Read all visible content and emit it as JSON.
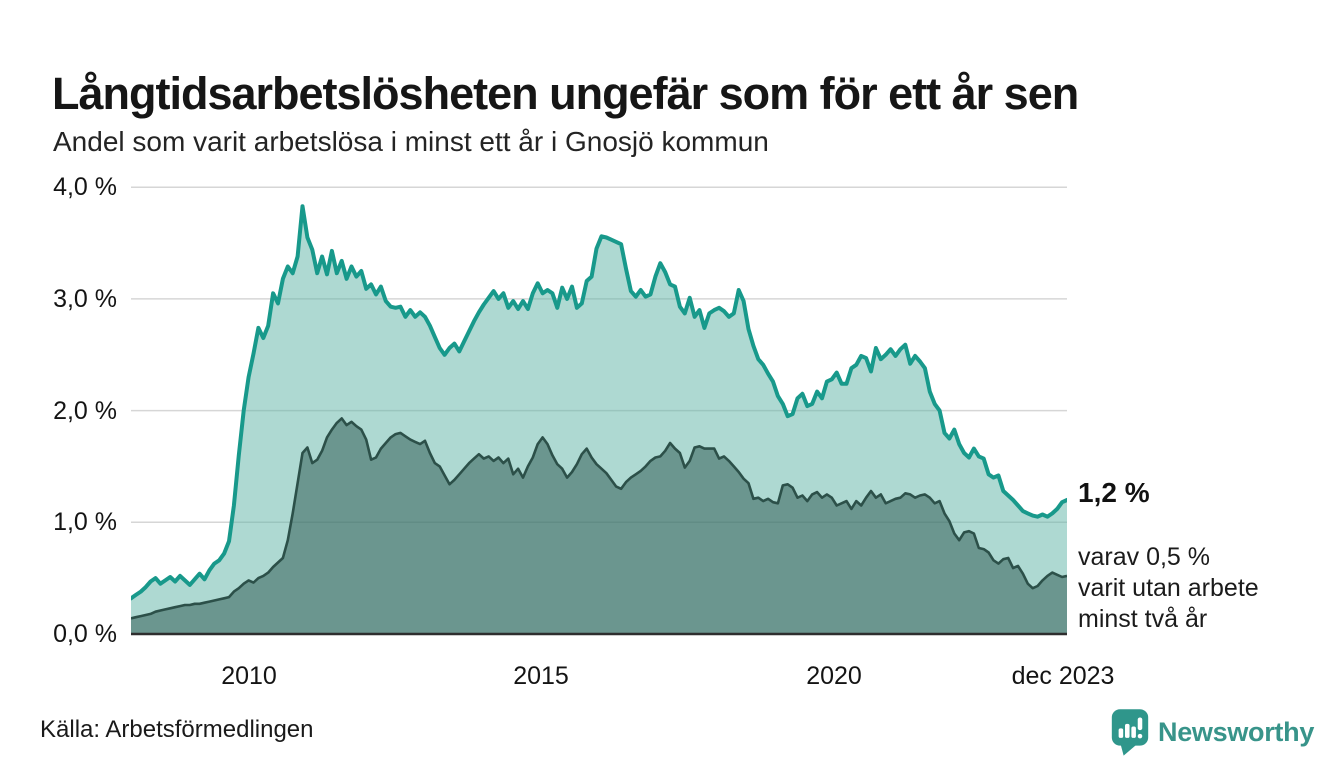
{
  "header": {
    "title": "Långtidsarbetslösheten ungefär som för ett år sen",
    "subtitle": "Andel som varit arbetslösa i minst ett år i Gnosjö kommun"
  },
  "chart_data": {
    "type": "area",
    "title": "Långtidsarbetslösheten ungefär som för ett år sen",
    "subtitle": "Andel som varit arbetslösa i minst ett år i Gnosjö kommun",
    "unit": "%",
    "x_start": "jan 2008",
    "x_end": "dec 2023",
    "x_frequency": "monthly",
    "ylim": [
      0,
      4.0
    ],
    "y_ticks": [
      0,
      1,
      2,
      3,
      4
    ],
    "y_tick_labels": [
      "4,0 %",
      "3,0 %",
      "2,0 %",
      "1,0 %",
      "0,0 %"
    ],
    "x_tick_labels": [
      "2010",
      "2015",
      "2020",
      "dec 2023"
    ],
    "grid": "horizontal",
    "legend_position": "none",
    "colors": {
      "grid": "#d6d6d6",
      "fill1": "rgba(93,179,166,0.5)",
      "fill2": "rgba(40,84,76,0.5)",
      "axis": "#2e2e2e"
    },
    "series": [
      {
        "name": "Arbetslösa minst ett år",
        "color": "#18998b",
        "end_value_label": "1,2 %",
        "values": [
          0.32,
          0.35,
          0.38,
          0.42,
          0.47,
          0.5,
          0.45,
          0.48,
          0.51,
          0.47,
          0.52,
          0.48,
          0.44,
          0.49,
          0.54,
          0.49,
          0.57,
          0.63,
          0.66,
          0.72,
          0.83,
          1.15,
          1.6,
          2.0,
          2.3,
          2.51,
          2.74,
          2.65,
          2.76,
          3.05,
          2.96,
          3.18,
          3.29,
          3.23,
          3.38,
          3.83,
          3.55,
          3.44,
          3.23,
          3.38,
          3.22,
          3.43,
          3.23,
          3.34,
          3.18,
          3.29,
          3.2,
          3.25,
          3.09,
          3.13,
          3.04,
          3.11,
          2.98,
          2.93,
          2.92,
          2.93,
          2.84,
          2.9,
          2.84,
          2.88,
          2.84,
          2.76,
          2.66,
          2.56,
          2.5,
          2.56,
          2.6,
          2.53,
          2.62,
          2.71,
          2.8,
          2.88,
          2.95,
          3.01,
          3.07,
          3.0,
          3.05,
          2.92,
          2.98,
          2.91,
          2.98,
          2.91,
          3.05,
          3.14,
          3.05,
          3.08,
          3.05,
          2.92,
          3.1,
          3.0,
          3.11,
          2.92,
          2.96,
          3.16,
          3.2,
          3.45,
          3.56,
          3.55,
          3.53,
          3.51,
          3.49,
          3.27,
          3.07,
          3.02,
          3.08,
          3.02,
          3.04,
          3.2,
          3.32,
          3.24,
          3.13,
          3.11,
          2.93,
          2.87,
          3.01,
          2.84,
          2.9,
          2.74,
          2.87,
          2.9,
          2.92,
          2.89,
          2.84,
          2.87,
          3.08,
          2.98,
          2.73,
          2.58,
          2.46,
          2.41,
          2.33,
          2.26,
          2.13,
          2.06,
          1.95,
          1.97,
          2.11,
          2.15,
          2.04,
          2.06,
          2.17,
          2.11,
          2.26,
          2.28,
          2.34,
          2.24,
          2.24,
          2.38,
          2.41,
          2.49,
          2.47,
          2.35,
          2.56,
          2.46,
          2.5,
          2.55,
          2.49,
          2.55,
          2.59,
          2.42,
          2.49,
          2.44,
          2.38,
          2.17,
          2.06,
          2.0,
          1.8,
          1.75,
          1.83,
          1.7,
          1.62,
          1.58,
          1.66,
          1.59,
          1.57,
          1.43,
          1.4,
          1.42,
          1.28,
          1.24,
          1.2,
          1.15,
          1.1,
          1.08,
          1.06,
          1.05,
          1.07,
          1.05,
          1.08,
          1.12,
          1.18,
          1.2
        ]
      },
      {
        "name": "Arbetslösa minst två år",
        "color": "#2c5049",
        "end_value_label": "0,5 %",
        "values": [
          0.14,
          0.15,
          0.16,
          0.17,
          0.18,
          0.2,
          0.21,
          0.22,
          0.23,
          0.24,
          0.25,
          0.26,
          0.26,
          0.27,
          0.27,
          0.28,
          0.29,
          0.3,
          0.31,
          0.32,
          0.33,
          0.38,
          0.41,
          0.45,
          0.48,
          0.46,
          0.5,
          0.52,
          0.55,
          0.6,
          0.64,
          0.68,
          0.84,
          1.08,
          1.35,
          1.62,
          1.67,
          1.53,
          1.56,
          1.64,
          1.76,
          1.83,
          1.89,
          1.93,
          1.87,
          1.9,
          1.86,
          1.83,
          1.74,
          1.56,
          1.58,
          1.66,
          1.71,
          1.76,
          1.79,
          1.8,
          1.77,
          1.74,
          1.72,
          1.7,
          1.73,
          1.62,
          1.53,
          1.5,
          1.42,
          1.34,
          1.38,
          1.43,
          1.48,
          1.53,
          1.57,
          1.61,
          1.57,
          1.59,
          1.55,
          1.58,
          1.53,
          1.57,
          1.43,
          1.48,
          1.4,
          1.5,
          1.58,
          1.7,
          1.76,
          1.7,
          1.6,
          1.52,
          1.48,
          1.4,
          1.45,
          1.52,
          1.61,
          1.66,
          1.58,
          1.52,
          1.48,
          1.44,
          1.38,
          1.32,
          1.3,
          1.36,
          1.4,
          1.43,
          1.46,
          1.5,
          1.55,
          1.58,
          1.59,
          1.64,
          1.71,
          1.66,
          1.62,
          1.49,
          1.55,
          1.67,
          1.68,
          1.66,
          1.66,
          1.66,
          1.57,
          1.59,
          1.55,
          1.5,
          1.45,
          1.39,
          1.35,
          1.21,
          1.22,
          1.19,
          1.21,
          1.18,
          1.17,
          1.33,
          1.34,
          1.31,
          1.22,
          1.24,
          1.19,
          1.25,
          1.27,
          1.22,
          1.25,
          1.22,
          1.15,
          1.17,
          1.19,
          1.12,
          1.19,
          1.15,
          1.22,
          1.28,
          1.22,
          1.25,
          1.17,
          1.19,
          1.21,
          1.22,
          1.26,
          1.25,
          1.22,
          1.24,
          1.25,
          1.22,
          1.17,
          1.19,
          1.08,
          1.01,
          0.9,
          0.84,
          0.91,
          0.92,
          0.9,
          0.77,
          0.76,
          0.73,
          0.66,
          0.63,
          0.67,
          0.68,
          0.59,
          0.61,
          0.54,
          0.45,
          0.41,
          0.43,
          0.48,
          0.52,
          0.55,
          0.53,
          0.51,
          0.52
        ]
      }
    ],
    "annotations": {
      "primary": "1,2 %",
      "secondary_lines": [
        "varav 0,5 %",
        "varit utan arbete",
        "minst två år"
      ]
    }
  },
  "footer": {
    "source": "Källa: Arbetsförmedlingen",
    "brand": "Newsworthy"
  }
}
